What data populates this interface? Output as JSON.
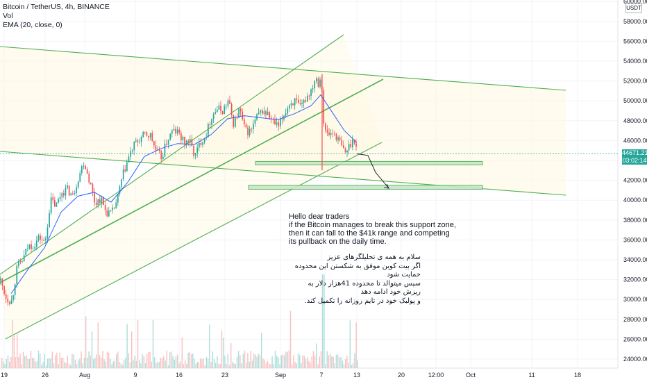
{
  "legend": {
    "symbol": "Bitcoin / TetherUS, 4h, BINANCE",
    "volume": "Vol",
    "ema": "EMA (20, close, 0)"
  },
  "quote_currency": "USDT",
  "last_price": {
    "price": "44671.21",
    "countdown": "03:02:14"
  },
  "annotation": {
    "en": [
      "Hello dear traders",
      "if the Bitcoin manages to break this support zone,",
      "then it can fall to the $41k range and competing",
      "its pullback on the daily time."
    ],
    "fa": [
      "سلام به همه ی تحلیلگرهای عزیز",
      "اگر بیت کوین موفق به شکستن این محدوده حمایت شود",
      "سپس میتوالد تا محدوده 41هزار دلار به ریزش خود ادامه دهد",
      "و پولبک خود در تایم روزانه را تکمیل کند."
    ]
  },
  "colors": {
    "up": "#26a69a",
    "down": "#ef5350",
    "ema": "#2962ff",
    "trendline": "#4caf50",
    "zone_fill": "#c8e6c9",
    "channel_fill": "#fff8e1",
    "grid": "#f0f3fa",
    "text": "#131722"
  },
  "chart_data": {
    "type": "candlestick",
    "timeframe": "4h",
    "x_axis_labels": [
      "19",
      "26",
      "Aug",
      "9",
      "16",
      "23",
      "Sep",
      "7",
      "13",
      "20",
      "12:00",
      "Oct",
      "11",
      "18"
    ],
    "y_axis_labels": [
      "24000.00",
      "26000.00",
      "28000.00",
      "30000.00",
      "32000.00",
      "34000.00",
      "36000.00",
      "38000.00",
      "40000.00",
      "42000.00",
      "44000.00",
      "46000.00",
      "48000.00",
      "50000.00",
      "52000.00",
      "54000.00",
      "56000.00",
      "58000.00",
      "60000.00"
    ],
    "ylim": [
      23200,
      61000
    ],
    "price_path": [
      [
        0,
        31900
      ],
      [
        8,
        30200
      ],
      [
        16,
        29800
      ],
      [
        24,
        33300
      ],
      [
        32,
        34000
      ],
      [
        40,
        35400
      ],
      [
        48,
        35500
      ],
      [
        56,
        36300
      ],
      [
        64,
        35600
      ],
      [
        72,
        40000
      ],
      [
        80,
        39400
      ],
      [
        88,
        40800
      ],
      [
        96,
        41100
      ],
      [
        104,
        40400
      ],
      [
        112,
        42300
      ],
      [
        120,
        43900
      ],
      [
        128,
        42000
      ],
      [
        136,
        39700
      ],
      [
        144,
        40200
      ],
      [
        152,
        38800
      ],
      [
        160,
        38600
      ],
      [
        168,
        40000
      ],
      [
        176,
        42500
      ],
      [
        184,
        44200
      ],
      [
        192,
        45500
      ],
      [
        200,
        46100
      ],
      [
        208,
        46600
      ],
      [
        216,
        46500
      ],
      [
        224,
        44900
      ],
      [
        232,
        44300
      ],
      [
        240,
        46000
      ],
      [
        248,
        47000
      ],
      [
        256,
        46800
      ],
      [
        264,
        45800
      ],
      [
        272,
        46000
      ],
      [
        280,
        44400
      ],
      [
        288,
        45900
      ],
      [
        296,
        46600
      ],
      [
        304,
        48500
      ],
      [
        312,
        49200
      ],
      [
        320,
        49000
      ],
      [
        328,
        50000
      ],
      [
        336,
        47600
      ],
      [
        344,
        49200
      ],
      [
        352,
        47000
      ],
      [
        360,
        46900
      ],
      [
        368,
        48200
      ],
      [
        376,
        49000
      ],
      [
        384,
        48700
      ],
      [
        392,
        47900
      ],
      [
        400,
        47300
      ],
      [
        408,
        48600
      ],
      [
        416,
        49700
      ],
      [
        424,
        50000
      ],
      [
        432,
        49200
      ],
      [
        440,
        50300
      ],
      [
        448,
        51200
      ],
      [
        454,
        52500
      ],
      [
        458,
        51800
      ],
      [
        462,
        52600
      ],
      [
        466,
        47000
      ],
      [
        472,
        46600
      ],
      [
        480,
        46800
      ],
      [
        488,
        45900
      ],
      [
        496,
        44700
      ],
      [
        504,
        45700
      ],
      [
        510,
        46200
      ],
      [
        514,
        44671
      ]
    ],
    "ema20_path": [
      [
        16,
        30600
      ],
      [
        40,
        33000
      ],
      [
        64,
        35200
      ],
      [
        88,
        38800
      ],
      [
        112,
        40400
      ],
      [
        136,
        40800
      ],
      [
        160,
        39800
      ],
      [
        184,
        41800
      ],
      [
        208,
        44400
      ],
      [
        232,
        45200
      ],
      [
        256,
        45700
      ],
      [
        280,
        45600
      ],
      [
        304,
        46600
      ],
      [
        328,
        48200
      ],
      [
        352,
        48500
      ],
      [
        376,
        48300
      ],
      [
        400,
        48100
      ],
      [
        424,
        48700
      ],
      [
        448,
        49500
      ],
      [
        462,
        50600
      ],
      [
        480,
        48700
      ],
      [
        496,
        47000
      ],
      [
        514,
        45800
      ]
    ],
    "volume": {
      "spike_at_x": 465,
      "description_free": true
    },
    "support_zones": [
      {
        "y_top": 43900,
        "y_bottom": 43550,
        "x_start": 368,
        "x_end": 695
      },
      {
        "y_top": 41500,
        "y_bottom": 41100,
        "x_start": 358,
        "x_end": 695
      }
    ],
    "projection_arrow": [
      [
        514,
        44671
      ],
      [
        530,
        44500
      ],
      [
        541,
        42800
      ],
      [
        560,
        41200
      ]
    ],
    "last_price": 44671.21,
    "grid": true
  }
}
